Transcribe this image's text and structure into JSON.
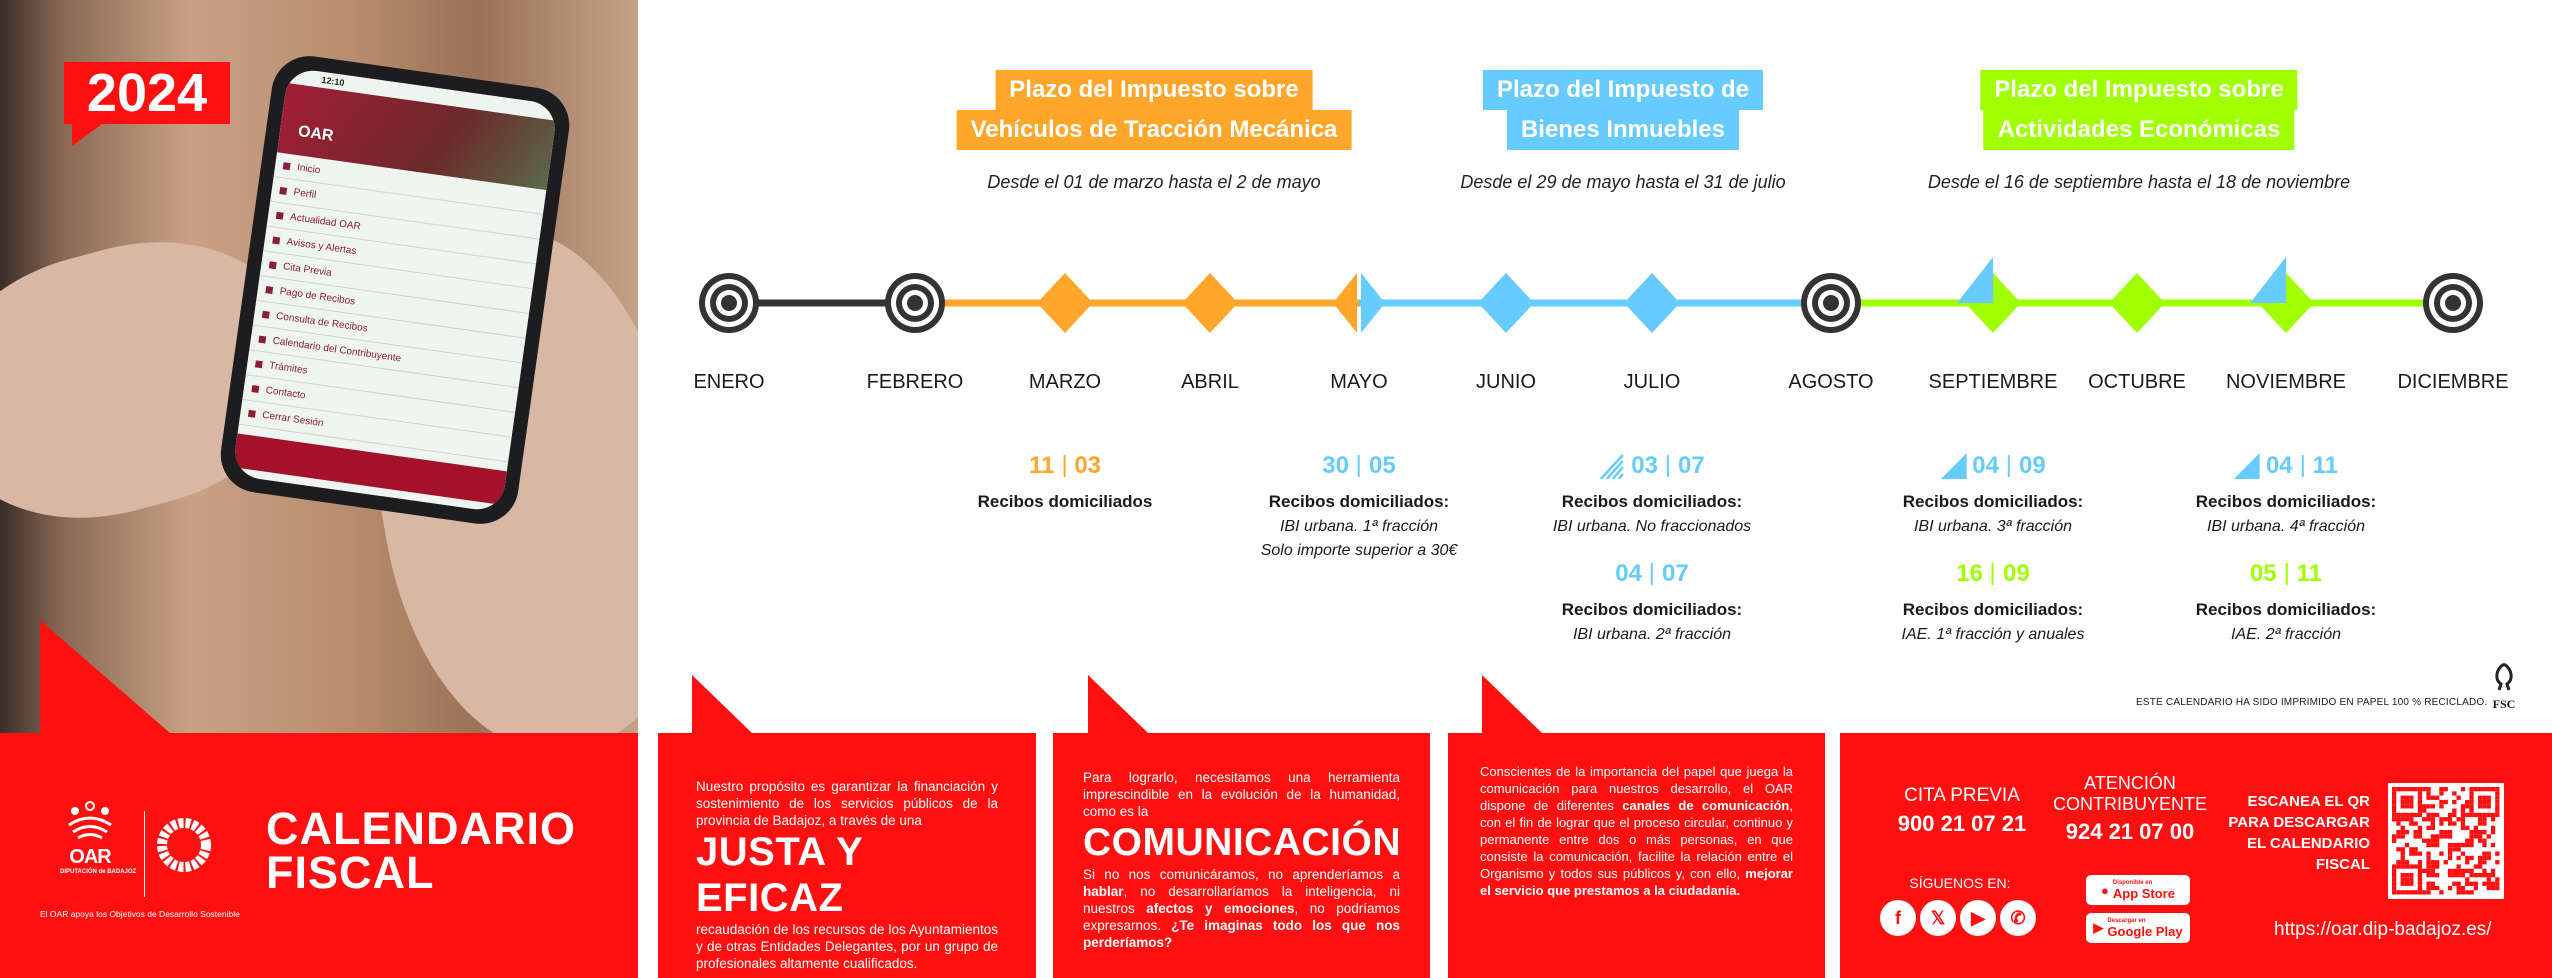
{
  "colors": {
    "orange": "#FFA62B",
    "blue": "#66CCFF",
    "green": "#A0FF00",
    "red": "#FF1010",
    "dark": "#333333"
  },
  "cover": {
    "year": "2024",
    "phone": {
      "time": "12:10",
      "brand": "OAR",
      "menu": [
        "Inicio",
        "Perfil",
        "Actualidad OAR",
        "Avisos y Alertas",
        "Cita Previa",
        "Pago de Recibos",
        "Consulta de Recibos",
        "Calendario del Contribuyente",
        "Trámites",
        "Contacto",
        "Cerrar Sesión"
      ]
    }
  },
  "taxes": [
    {
      "title_lines": [
        "Plazo del Impuesto sobre",
        "Vehículos de Tracción Mecánica"
      ],
      "period": "Desde el 01 de marzo hasta el 2 de mayo",
      "color": "orange"
    },
    {
      "title_lines": [
        "Plazo del Impuesto de",
        "Bienes Inmuebles"
      ],
      "period": "Desde el 29 de mayo hasta el 31 de julio",
      "color": "blue"
    },
    {
      "title_lines": [
        "Plazo del Impuesto sobre",
        "Actividades Económicas"
      ],
      "period": "Desde el 16 de septiembre hasta el 18 de noviembre",
      "color": "green"
    }
  ],
  "timeline": {
    "months": [
      {
        "label": "ENERO",
        "marker": "target"
      },
      {
        "label": "FEBRERO",
        "marker": "target"
      },
      {
        "label": "MARZO",
        "marker": "diamond",
        "color": "orange"
      },
      {
        "label": "ABRIL",
        "marker": "diamond",
        "color": "orange"
      },
      {
        "label": "MAYO",
        "marker": "split",
        "color": "orange",
        "color2": "blue"
      },
      {
        "label": "JUNIO",
        "marker": "diamond",
        "color": "blue"
      },
      {
        "label": "JULIO",
        "marker": "diamond",
        "color": "blue"
      },
      {
        "label": "AGOSTO",
        "marker": "target"
      },
      {
        "label": "SEPTIEMBRE",
        "marker": "diamond-flag",
        "color": "green",
        "color2": "blue"
      },
      {
        "label": "OCTUBRE",
        "marker": "diamond",
        "color": "green"
      },
      {
        "label": "NOVIEMBRE",
        "marker": "diamond-flag",
        "color": "green",
        "color2": "blue"
      },
      {
        "label": "DICIEMBRE",
        "marker": "target"
      }
    ],
    "segments": [
      "dark",
      "orange",
      "orange",
      "orange",
      "blue",
      "blue",
      "blue",
      "green",
      "green",
      "green",
      "green"
    ]
  },
  "receipts": [
    {
      "month_index": 2,
      "items": [
        {
          "day": "11",
          "month": "03",
          "color": "orange",
          "label": "Recibos domiciliados",
          "details": []
        }
      ]
    },
    {
      "month_index": 4,
      "items": [
        {
          "day": "30",
          "month": "05",
          "color": "blue",
          "label": "Recibos domiciliados:",
          "details": [
            "IBI urbana. 1ª fracción",
            "Solo importe superior a 30€"
          ]
        }
      ]
    },
    {
      "month_index": 6,
      "items": [
        {
          "day": "03",
          "month": "07",
          "color": "blue",
          "icon": "stripes",
          "label": "Recibos domiciliados:",
          "details": [
            "IBI urbana. No fraccionados"
          ]
        },
        {
          "day": "04",
          "month": "07",
          "color": "blue",
          "label": "Recibos domiciliados:",
          "details": [
            "IBI urbana. 2ª fracción"
          ]
        }
      ]
    },
    {
      "month_index": 8,
      "items": [
        {
          "day": "04",
          "month": "09",
          "color": "blue",
          "icon": "triangle",
          "label": "Recibos domiciliados:",
          "details": [
            "IBI urbana. 3ª fracción"
          ]
        },
        {
          "day": "16",
          "month": "09",
          "color": "green",
          "label": "Recibos domiciliados:",
          "details": [
            "IAE. 1ª fracción y anuales"
          ]
        }
      ]
    },
    {
      "month_index": 10,
      "items": [
        {
          "day": "04",
          "month": "11",
          "color": "blue",
          "icon": "triangle",
          "label": "Recibos domiciliados:",
          "details": [
            "IBI urbana. 4ª fracción"
          ]
        },
        {
          "day": "05",
          "month": "11",
          "color": "green",
          "label": "Recibos domiciliados:",
          "details": [
            "IAE. 2ª fracción"
          ]
        }
      ]
    }
  ],
  "fsc": {
    "note": "ESTE CALENDARIO HA SIDO IMPRIMIDO EN PAPEL 100 % RECICLADO.",
    "logo": "FSC"
  },
  "brand": {
    "oar": "OAR",
    "dipu": "DIPUTACIÓN de BADAJOZ",
    "tagline": "El OAR apoya los Objetivos de Desarrollo Sostenible",
    "title1": "CALENDARIO",
    "title2": "FISCAL"
  },
  "panel1": {
    "intro": "Nuestro propósito es garantizar  la financiación y sostenimiento de los servicios públicos de la provincia de Badajoz, a través de una",
    "headline": "JUSTA Y EFICAZ",
    "outro": "recaudación de los recursos de los Ayuntamientos y de otras Entidades  Delegantes, por un grupo de profesionales altamente cualificados."
  },
  "panel2": {
    "intro": "Para lograrlo, necesitamos  una herramienta imprescindible en la evolución de la humanidad, como es la",
    "headline": "COMUNICACIÓN",
    "t1": "Si no nos comunicáramos, no aprenderíamos a ",
    "b1": "hablar",
    "t2": ", no desarrollaríamos la inteligencia, ni nuestros ",
    "b2": "afectos y emociones",
    "t3": ", no podríamos expresarnos. ",
    "b3": "¿Te imaginas todo los que nos perderíamos?"
  },
  "panel3": {
    "t1": "Conscientes de la importancia  del papel que juega la comunicación para nuestros desarrollo, el OAR dispone de diferentes ",
    "b1": "canales de comunicación",
    "t2": ", con el fin de lograr que el proceso circular, continuo y permanente entre dos o más personas, en que consiste la comunicación,  facilite la relación entre el Organismo y todos  sus públicos y, con ello, ",
    "b2": "mejorar el servicio que prestamos a la ciudadanía."
  },
  "contact": {
    "cita_label": "CITA PREVIA",
    "cita_phone": "900 21 07 21",
    "atencion_label1": "ATENCIÓN",
    "atencion_label2": "CONTRIBUYENTE",
    "atencion_phone": "924 21 07 00",
    "follow": "SÍGUENOS EN:",
    "social": [
      {
        "icon": "facebook-icon",
        "glyph": "f"
      },
      {
        "icon": "x-icon",
        "glyph": "𝕏"
      },
      {
        "icon": "youtube-icon",
        "glyph": "▶"
      },
      {
        "icon": "whatsapp-icon",
        "glyph": "✆"
      }
    ],
    "appstore_small": "Disponible en",
    "appstore": "App Store",
    "play_small": "Descargar en",
    "play": "Google Play",
    "qr_lines": [
      "ESCANEA EL QR",
      "PARA DESCARGAR",
      "EL CALENDARIO",
      "FISCAL"
    ],
    "url": "https://oar.dip-badajoz.es/"
  }
}
